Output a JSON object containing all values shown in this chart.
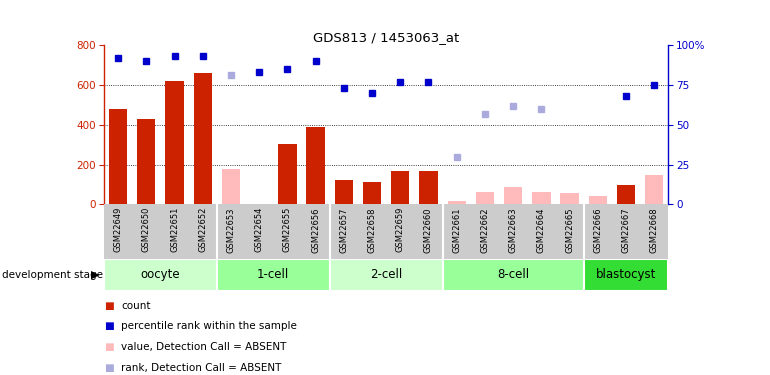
{
  "title": "GDS813 / 1453063_at",
  "samples": [
    "GSM22649",
    "GSM22650",
    "GSM22651",
    "GSM22652",
    "GSM22653",
    "GSM22654",
    "GSM22655",
    "GSM22656",
    "GSM22657",
    "GSM22658",
    "GSM22659",
    "GSM22660",
    "GSM22661",
    "GSM22662",
    "GSM22663",
    "GSM22664",
    "GSM22665",
    "GSM22666",
    "GSM22667",
    "GSM22668"
  ],
  "count_values": [
    480,
    430,
    620,
    660,
    null,
    null,
    305,
    390,
    120,
    110,
    170,
    170,
    null,
    null,
    null,
    null,
    null,
    null,
    95,
    null
  ],
  "count_absent_values": [
    null,
    null,
    null,
    null,
    180,
    null,
    null,
    null,
    null,
    null,
    null,
    null,
    15,
    60,
    85,
    60,
    55,
    40,
    null,
    145
  ],
  "rank_values": [
    92,
    90,
    93,
    93,
    null,
    83,
    85,
    90,
    73,
    70,
    77,
    77,
    null,
    null,
    null,
    null,
    null,
    null,
    68,
    75
  ],
  "rank_absent_values": [
    null,
    null,
    null,
    null,
    81,
    null,
    null,
    null,
    null,
    null,
    null,
    null,
    30,
    57,
    62,
    60,
    null,
    null,
    null,
    null
  ],
  "groups": [
    {
      "label": "oocyte",
      "start": 0,
      "end": 3,
      "color": "#ccffcc"
    },
    {
      "label": "1-cell",
      "start": 4,
      "end": 7,
      "color": "#99ff99"
    },
    {
      "label": "2-cell",
      "start": 8,
      "end": 11,
      "color": "#ccffcc"
    },
    {
      "label": "8-cell",
      "start": 12,
      "end": 16,
      "color": "#99ff99"
    },
    {
      "label": "blastocyst",
      "start": 17,
      "end": 19,
      "color": "#33dd33"
    }
  ],
  "bar_color_present": "#cc2200",
  "bar_color_absent": "#ffbbbb",
  "dot_color_present": "#0000cc",
  "dot_color_absent": "#aaaadd",
  "ylim_left": [
    0,
    800
  ],
  "ylim_right": [
    0,
    100
  ],
  "yticks_left": [
    0,
    200,
    400,
    600,
    800
  ],
  "yticks_right": [
    0,
    25,
    50,
    75,
    100
  ],
  "grid_values": [
    200,
    400,
    600
  ],
  "legend_items": [
    {
      "label": "count",
      "color": "#cc2200",
      "type": "bar"
    },
    {
      "label": "percentile rank within the sample",
      "color": "#0000cc",
      "type": "dot"
    },
    {
      "label": "value, Detection Call = ABSENT",
      "color": "#ffbbbb",
      "type": "bar"
    },
    {
      "label": "rank, Detection Call = ABSENT",
      "color": "#aaaadd",
      "type": "dot"
    }
  ]
}
